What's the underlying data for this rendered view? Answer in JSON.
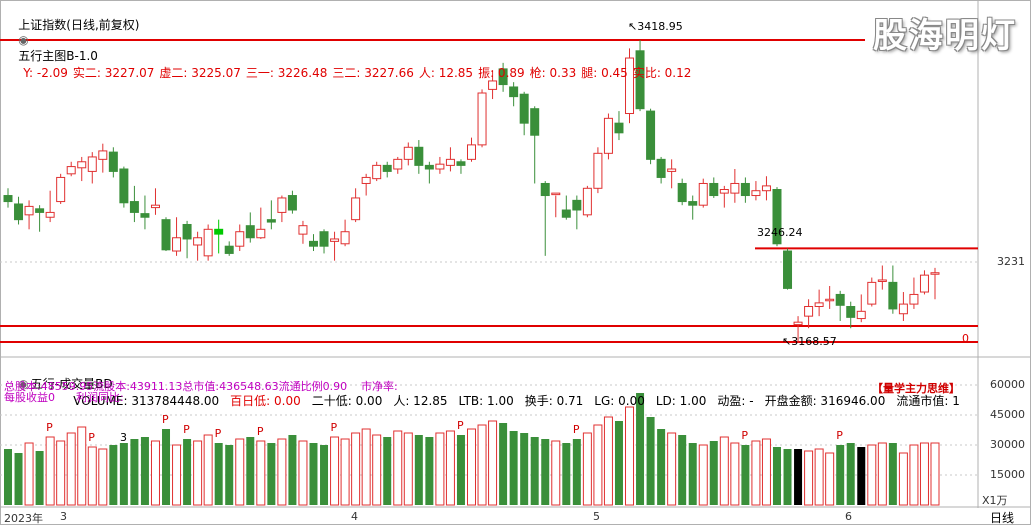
{
  "header": {
    "index_name": "上证指数(日线,前复权)",
    "indicator": "五行主图B-1.0",
    "items": [
      {
        "label": "Y:",
        "value": "-2.09",
        "color": "#e00000"
      },
      {
        "label": "实二:",
        "value": "3227.07",
        "color": "#e00000"
      },
      {
        "label": "虚二:",
        "value": "3225.07",
        "color": "#e00000"
      },
      {
        "label": "三一:",
        "value": "3226.48",
        "color": "#e00000"
      },
      {
        "label": "三二:",
        "value": "3227.66",
        "color": "#e00000"
      },
      {
        "label": "人:",
        "value": "12.85",
        "color": "#e00000"
      },
      {
        "label": "振:",
        "value": "0.89",
        "color": "#e00000"
      },
      {
        "label": "枪:",
        "value": "0.33",
        "color": "#e00000"
      },
      {
        "label": "腿:",
        "value": "0.45",
        "color": "#e00000"
      },
      {
        "label": "实比:",
        "value": "0.12",
        "color": "#e00000"
      }
    ]
  },
  "watermark": "股海明灯",
  "price_panel": {
    "high_label": "3418.95",
    "low_label": "3168.57",
    "level_label": "3246.24",
    "y_tick": "3231",
    "zero_label": "0"
  },
  "volume_header": {
    "indicator": "五行-成交量BD",
    "items": [
      {
        "label": "VOLUME:",
        "value": "313784448.00",
        "color": "#000000"
      },
      {
        "label": "百日低:",
        "value": "0.00",
        "color": "#e00000"
      },
      {
        "label": "二十低:",
        "value": "0.00",
        "color": "#000000"
      },
      {
        "label": "人:",
        "value": "12.85",
        "color": "#000000"
      },
      {
        "label": "LTB:",
        "value": "1.00",
        "color": "#000000"
      },
      {
        "label": "换手:",
        "value": "0.71",
        "color": "#000000"
      },
      {
        "label": "LG:",
        "value": "0.00",
        "color": "#000000"
      },
      {
        "label": "LD:",
        "value": "1.00",
        "color": "#000000"
      },
      {
        "label": "动盈:",
        "value": "-",
        "color": "#000000"
      },
      {
        "label": "开盘金额:",
        "value": "316946.00",
        "color": "#000000"
      },
      {
        "label": "流通市值:",
        "value": "1",
        "color": "#000000"
      }
    ]
  },
  "fundamentals": {
    "line1": "总股本:48559.95流股本:43911.13总市值:436548.63流通比例0.90    市净率:",
    "line2": "每股收益0      利润同比:",
    "brand": "【量学主力思维】"
  },
  "volume_panel": {
    "y_ticks": [
      "60000",
      "45000",
      "30000",
      "15000"
    ],
    "unit": "X1万",
    "marker_3": "3"
  },
  "x_axis": {
    "labels": [
      "2023年",
      "3",
      "4",
      "5",
      "6"
    ],
    "period": "日线"
  },
  "colors": {
    "up": "#e03030",
    "down": "#3a8f3a",
    "highlight": "#00c800",
    "line": "#e00000",
    "black_bar": "#000000"
  },
  "chart_data": {
    "type": "candlestick",
    "title": "上证指数(日线,前复权)",
    "x": [
      "2023-02-27",
      "2023-03-01",
      "2023-04-03",
      "2023-05-04",
      "2023-06-01"
    ],
    "ylim": [
      3160,
      3430
    ],
    "lines": [
      3418.95,
      3246.24,
      3168.57
    ],
    "candles": [
      [
        3290,
        3285,
        3296,
        3280
      ],
      [
        3283,
        3270,
        3289,
        3266
      ],
      [
        3274,
        3281,
        3286,
        3262
      ],
      [
        3279,
        3276,
        3282,
        3260
      ],
      [
        3272,
        3276,
        3294,
        3268
      ],
      [
        3285,
        3305,
        3308,
        3283
      ],
      [
        3308,
        3314,
        3318,
        3306
      ],
      [
        3313,
        3318,
        3322,
        3302
      ],
      [
        3310,
        3322,
        3326,
        3300
      ],
      [
        3320,
        3327,
        3333,
        3309
      ],
      [
        3326,
        3310,
        3330,
        3305
      ],
      [
        3312,
        3284,
        3314,
        3280
      ],
      [
        3285,
        3276,
        3298,
        3268
      ],
      [
        3275,
        3272,
        3290,
        3262
      ],
      [
        3280,
        3282,
        3296,
        3274
      ],
      [
        3270,
        3245,
        3272,
        3244
      ],
      [
        3244,
        3255,
        3272,
        3240
      ],
      [
        3266,
        3254,
        3269,
        3238
      ],
      [
        3249,
        3255,
        3260,
        3236
      ],
      [
        3240,
        3262,
        3266,
        3236
      ],
      [
        3262,
        3258,
        3270,
        3242
      ],
      [
        3248,
        3242,
        3252,
        3240
      ],
      [
        3248,
        3260,
        3266,
        3244
      ],
      [
        3265,
        3255,
        3276,
        3251
      ],
      [
        3255,
        3262,
        3280,
        3254
      ],
      [
        3270,
        3268,
        3286,
        3262
      ],
      [
        3276,
        3288,
        3290,
        3268
      ],
      [
        3290,
        3278,
        3294,
        3275
      ],
      [
        3258,
        3265,
        3269,
        3250
      ],
      [
        3252,
        3248,
        3258,
        3244
      ],
      [
        3260,
        3248,
        3262,
        3242
      ],
      [
        3252,
        3254,
        3260,
        3236
      ],
      [
        3250,
        3260,
        3270,
        3248
      ],
      [
        3270,
        3288,
        3296,
        3268
      ],
      [
        3300,
        3305,
        3308,
        3290
      ],
      [
        3304,
        3315,
        3318,
        3302
      ],
      [
        3315,
        3310,
        3318,
        3305
      ],
      [
        3312,
        3320,
        3322,
        3308
      ],
      [
        3320,
        3330,
        3334,
        3315
      ],
      [
        3330,
        3315,
        3336,
        3308
      ],
      [
        3315,
        3312,
        3318,
        3300
      ],
      [
        3312,
        3316,
        3322,
        3308
      ],
      [
        3315,
        3320,
        3330,
        3310
      ],
      [
        3318,
        3315,
        3320,
        3308
      ],
      [
        3320,
        3332,
        3338,
        3318
      ],
      [
        3332,
        3375,
        3378,
        3330
      ],
      [
        3378,
        3385,
        3394,
        3370
      ],
      [
        3395,
        3382,
        3400,
        3376
      ],
      [
        3380,
        3372,
        3384,
        3364
      ],
      [
        3374,
        3350,
        3376,
        3340
      ],
      [
        3362,
        3340,
        3364,
        3300
      ],
      [
        3300,
        3290,
        3302,
        3240
      ],
      [
        3292,
        3292,
        3290,
        3272
      ],
      [
        3278,
        3272,
        3290,
        3270
      ],
      [
        3286,
        3278,
        3290,
        3262
      ],
      [
        3274,
        3296,
        3298,
        3272
      ],
      [
        3296,
        3325,
        3330,
        3292
      ],
      [
        3325,
        3354,
        3358,
        3320
      ],
      [
        3350,
        3342,
        3360,
        3336
      ],
      [
        3358,
        3404,
        3412,
        3350
      ],
      [
        3410,
        3362,
        3419,
        3360
      ],
      [
        3360,
        3320,
        3362,
        3316
      ],
      [
        3320,
        3305,
        3322,
        3300
      ],
      [
        3310,
        3312,
        3320,
        3296
      ],
      [
        3300,
        3285,
        3304,
        3282
      ],
      [
        3285,
        3282,
        3290,
        3270
      ],
      [
        3282,
        3300,
        3304,
        3280
      ],
      [
        3300,
        3290,
        3305,
        3288
      ],
      [
        3292,
        3295,
        3298,
        3280
      ],
      [
        3292,
        3300,
        3312,
        3284
      ],
      [
        3300,
        3290,
        3305,
        3284
      ],
      [
        3290,
        3294,
        3302,
        3286
      ],
      [
        3294,
        3298,
        3306,
        3286
      ],
      [
        3295,
        3250,
        3297,
        3248
      ],
      [
        3244,
        3213,
        3246,
        3212
      ],
      [
        3183,
        3185,
        3190,
        3168
      ],
      [
        3190,
        3198,
        3204,
        3180
      ],
      [
        3198,
        3201,
        3212,
        3190
      ],
      [
        3203,
        3204,
        3215,
        3196
      ],
      [
        3208,
        3199,
        3211,
        3186
      ],
      [
        3198,
        3189,
        3202,
        3180
      ],
      [
        3188,
        3194,
        3208,
        3185
      ],
      [
        3200,
        3218,
        3222,
        3198
      ],
      [
        3220,
        3220,
        3232,
        3212
      ],
      [
        3218,
        3196,
        3232,
        3192
      ],
      [
        3192,
        3200,
        3210,
        3186
      ],
      [
        3200,
        3208,
        3222,
        3196
      ],
      [
        3210,
        3224,
        3228,
        3208
      ],
      [
        3226,
        3226,
        3230,
        3204
      ]
    ],
    "volume_units": "万",
    "volume_ylim": [
      0,
      65000
    ]
  }
}
